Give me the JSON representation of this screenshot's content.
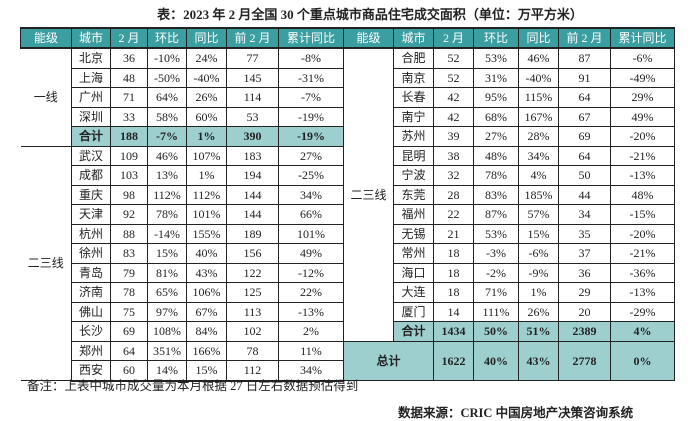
{
  "title": "表：2023 年 2 月全国 30 个重点城市商品住宅成交面积（单位：万平方米）",
  "headers": [
    "能级",
    "城市",
    "2 月",
    "环比",
    "同比",
    "前 2 月",
    "累计同比"
  ],
  "left": {
    "groups": [
      {
        "level": "一线",
        "rows": [
          [
            "北京",
            "36",
            "-10%",
            "24%",
            "77",
            "-8%"
          ],
          [
            "上海",
            "48",
            "-50%",
            "-40%",
            "145",
            "-31%"
          ],
          [
            "广州",
            "71",
            "64%",
            "26%",
            "114",
            "-7%"
          ],
          [
            "深圳",
            "33",
            "58%",
            "60%",
            "53",
            "-19%"
          ]
        ],
        "subtotal": [
          "合计",
          "188",
          "-7%",
          "1%",
          "390",
          "-19%"
        ]
      },
      {
        "level": "二三线",
        "rows": [
          [
            "武汉",
            "109",
            "46%",
            "107%",
            "183",
            "27%"
          ],
          [
            "成都",
            "103",
            "13%",
            "1%",
            "194",
            "-25%"
          ],
          [
            "重庆",
            "98",
            "112%",
            "112%",
            "144",
            "34%"
          ],
          [
            "天津",
            "92",
            "78%",
            "101%",
            "144",
            "66%"
          ],
          [
            "杭州",
            "88",
            "-14%",
            "155%",
            "189",
            "101%"
          ],
          [
            "徐州",
            "83",
            "15%",
            "40%",
            "156",
            "49%"
          ],
          [
            "青岛",
            "79",
            "81%",
            "43%",
            "122",
            "-12%"
          ],
          [
            "济南",
            "78",
            "65%",
            "106%",
            "125",
            "22%"
          ],
          [
            "佛山",
            "75",
            "97%",
            "67%",
            "113",
            "-13%"
          ],
          [
            "长沙",
            "69",
            "108%",
            "84%",
            "102",
            "2%"
          ],
          [
            "郑州",
            "64",
            "351%",
            "166%",
            "78",
            "11%"
          ],
          [
            "西安",
            "60",
            "14%",
            "15%",
            "112",
            "34%"
          ]
        ]
      }
    ]
  },
  "right": {
    "level": "二三线",
    "rows": [
      [
        "合肥",
        "52",
        "53%",
        "46%",
        "87",
        "-6%"
      ],
      [
        "南京",
        "52",
        "31%",
        "-40%",
        "91",
        "-49%"
      ],
      [
        "长春",
        "42",
        "95%",
        "115%",
        "64",
        "29%"
      ],
      [
        "南宁",
        "42",
        "68%",
        "167%",
        "67",
        "49%"
      ],
      [
        "苏州",
        "39",
        "27%",
        "28%",
        "69",
        "-20%"
      ],
      [
        "昆明",
        "38",
        "48%",
        "34%",
        "64",
        "-21%"
      ],
      [
        "宁波",
        "32",
        "78%",
        "4%",
        "50",
        "-13%"
      ],
      [
        "东莞",
        "28",
        "83%",
        "185%",
        "44",
        "48%"
      ],
      [
        "福州",
        "22",
        "87%",
        "57%",
        "34",
        "-15%"
      ],
      [
        "无锡",
        "21",
        "53%",
        "15%",
        "35",
        "-20%"
      ],
      [
        "常州",
        "18",
        "-3%",
        "-6%",
        "37",
        "-21%"
      ],
      [
        "海口",
        "18",
        "-2%",
        "-9%",
        "36",
        "-36%"
      ],
      [
        "大连",
        "18",
        "71%",
        "1%",
        "29",
        "-13%"
      ],
      [
        "厦门",
        "14",
        "111%",
        "26%",
        "20",
        "-29%"
      ]
    ],
    "subtotal": [
      "合计",
      "1434",
      "50%",
      "51%",
      "2389",
      "4%"
    ],
    "total": [
      "总计",
      "1622",
      "40%",
      "43%",
      "2778",
      "0%"
    ]
  },
  "note": "备注：上表中城市成交量为本月根据 27 日左右数据预估得到",
  "source": "数据来源：CRIC 中国房地产决策咨询系统",
  "colors": {
    "header": "#3b9ea1",
    "subtotal": "#9dcfcf"
  }
}
